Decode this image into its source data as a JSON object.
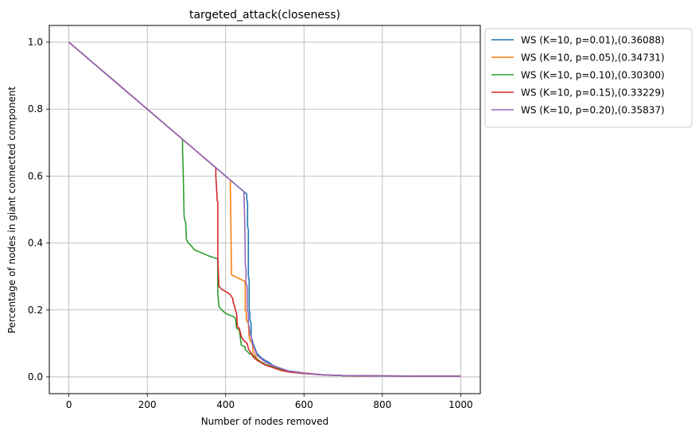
{
  "chart_data": {
    "type": "line",
    "title": "targeted_attack(closeness)",
    "xlabel": "Number of nodes removed",
    "ylabel": "Percentage of nodes in giant connected component",
    "xlim": [
      -50,
      1050
    ],
    "ylim": [
      -0.05,
      1.05
    ],
    "xticks": [
      0,
      200,
      400,
      600,
      800,
      1000
    ],
    "yticks": [
      0.0,
      0.2,
      0.4,
      0.6,
      0.8,
      1.0
    ],
    "xtick_labels": [
      "0",
      "200",
      "400",
      "600",
      "800",
      "1000"
    ],
    "ytick_labels": [
      "0.0",
      "0.2",
      "0.4",
      "0.6",
      "0.8",
      "1.0"
    ],
    "grid": true,
    "legend_position": "outside-upper-right",
    "series": [
      {
        "name": "WS (K=10, p=0.01),(0.36088)",
        "color": "#1f77b4",
        "x": [
          0,
          454,
          454,
          456,
          456,
          458,
          458,
          460,
          460,
          462,
          462,
          465,
          465,
          468,
          470,
          475,
          480,
          490,
          500,
          510,
          520,
          540,
          560,
          600,
          650,
          700,
          800,
          1000
        ],
        "y": [
          1.0,
          0.546,
          0.53,
          0.52,
          0.45,
          0.44,
          0.3,
          0.29,
          0.2,
          0.19,
          0.17,
          0.16,
          0.12,
          0.11,
          0.1,
          0.085,
          0.07,
          0.058,
          0.05,
          0.044,
          0.035,
          0.025,
          0.018,
          0.012,
          0.006,
          0.004,
          0.003,
          0.002
        ]
      },
      {
        "name": "WS (K=10, p=0.05),(0.34731)",
        "color": "#ff7f0e",
        "x": [
          0,
          412,
          412,
          415,
          450,
          450,
          453,
          453,
          458,
          460,
          462,
          468,
          470,
          475,
          480,
          490,
          500,
          520,
          540,
          560,
          600,
          650,
          700,
          800,
          1000
        ],
        "y": [
          1.0,
          0.588,
          0.58,
          0.305,
          0.285,
          0.2,
          0.19,
          0.17,
          0.16,
          0.12,
          0.11,
          0.1,
          0.075,
          0.065,
          0.055,
          0.045,
          0.038,
          0.03,
          0.022,
          0.017,
          0.012,
          0.006,
          0.004,
          0.003,
          0.002
        ]
      },
      {
        "name": "WS (K=10, p=0.10),(0.30300)",
        "color": "#2ca02c",
        "x": [
          0,
          290,
          290,
          292,
          294,
          296,
          298,
          300,
          305,
          310,
          320,
          340,
          360,
          380,
          380,
          383,
          390,
          400,
          410,
          420,
          425,
          428,
          435,
          440,
          445,
          450,
          450,
          460,
          470,
          475,
          480,
          490,
          500,
          520,
          540,
          560,
          600,
          650,
          700,
          800,
          1000
        ],
        "y": [
          1.0,
          0.71,
          0.68,
          0.6,
          0.48,
          0.467,
          0.463,
          0.41,
          0.4,
          0.395,
          0.38,
          0.37,
          0.36,
          0.352,
          0.25,
          0.21,
          0.2,
          0.19,
          0.185,
          0.18,
          0.175,
          0.145,
          0.14,
          0.095,
          0.092,
          0.09,
          0.083,
          0.07,
          0.065,
          0.058,
          0.052,
          0.045,
          0.038,
          0.03,
          0.022,
          0.015,
          0.01,
          0.006,
          0.004,
          0.003,
          0.002
        ]
      },
      {
        "name": "WS (K=10, p=0.15),(0.33229)",
        "color": "#d62728",
        "x": [
          0,
          375,
          375,
          378,
          378,
          380,
          380,
          383,
          385,
          390,
          400,
          410,
          415,
          418,
          420,
          422,
          425,
          428,
          430,
          432,
          435,
          440,
          443,
          445,
          450,
          455,
          458,
          460,
          463,
          466,
          470,
          480,
          490,
          500,
          520,
          540,
          560,
          600,
          650,
          700,
          800,
          1000
        ],
        "y": [
          1.0,
          0.625,
          0.6,
          0.54,
          0.53,
          0.52,
          0.36,
          0.27,
          0.268,
          0.262,
          0.255,
          0.248,
          0.24,
          0.235,
          0.22,
          0.215,
          0.2,
          0.19,
          0.15,
          0.148,
          0.145,
          0.12,
          0.115,
          0.11,
          0.105,
          0.1,
          0.085,
          0.08,
          0.075,
          0.07,
          0.06,
          0.05,
          0.043,
          0.036,
          0.028,
          0.02,
          0.015,
          0.01,
          0.006,
          0.004,
          0.003,
          0.002
        ]
      },
      {
        "name": "WS (K=10, p=0.20),(0.35837)",
        "color": "#9467bd",
        "x": [
          0,
          447,
          447,
          449,
          450,
          450,
          452,
          452,
          455,
          455,
          458,
          458,
          460,
          462,
          465,
          468,
          470,
          475,
          480,
          490,
          500,
          520,
          540,
          560,
          600,
          650,
          700,
          800,
          1000
        ],
        "y": [
          1.0,
          0.553,
          0.54,
          0.45,
          0.36,
          0.34,
          0.32,
          0.28,
          0.27,
          0.2,
          0.19,
          0.16,
          0.15,
          0.13,
          0.12,
          0.1,
          0.095,
          0.08,
          0.065,
          0.055,
          0.045,
          0.034,
          0.026,
          0.018,
          0.011,
          0.006,
          0.004,
          0.003,
          0.002
        ]
      }
    ]
  }
}
